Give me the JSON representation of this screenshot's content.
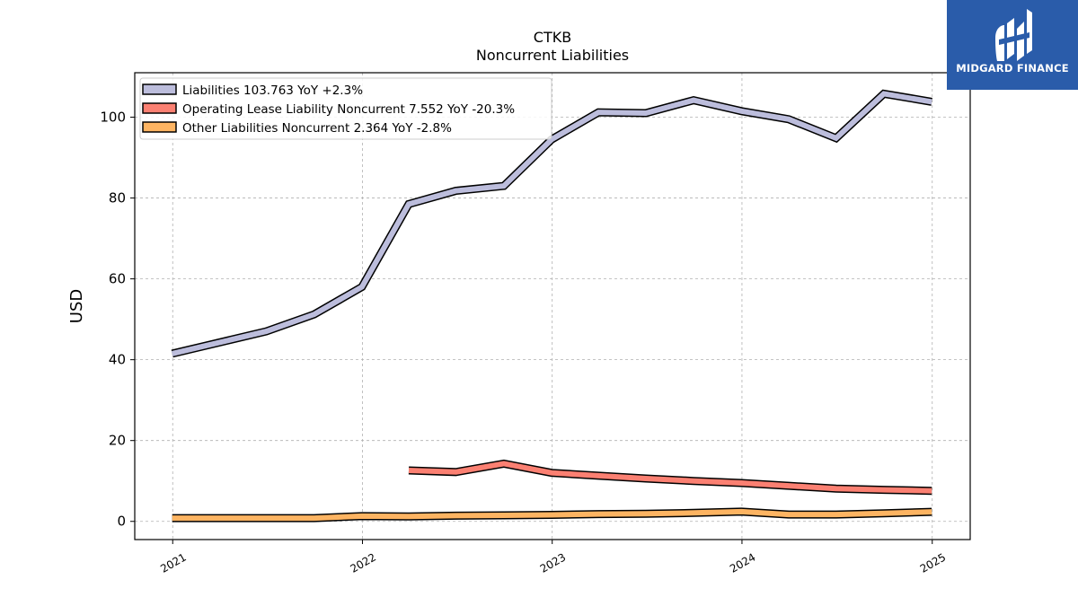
{
  "chart_data": {
    "type": "line",
    "title": "CTKB",
    "subtitle": "Noncurrent  Liabilities",
    "xlabel": "",
    "ylabel": "USD",
    "xlim": [
      "2020-10-20",
      "2025-03-15"
    ],
    "ylim": [
      -4.5,
      111
    ],
    "yticks": [
      0,
      20,
      40,
      60,
      80,
      100
    ],
    "xticks": [
      "2021",
      "2022",
      "2023",
      "2024",
      "2025"
    ],
    "grid": true,
    "legend_position": "upper-left",
    "series": [
      {
        "name": "Liabilities  103.763 YoY +2.3%",
        "color": "#bcbddc",
        "x": [
          "2020-12-31",
          "2021-06-30",
          "2021-09-30",
          "2021-12-31",
          "2022-03-31",
          "2022-06-30",
          "2022-09-30",
          "2022-12-31",
          "2023-03-31",
          "2023-06-30",
          "2023-09-30",
          "2023-12-31",
          "2024-03-31",
          "2024-06-30",
          "2024-09-30",
          "2024-12-31"
        ],
        "y": [
          41.5,
          47.0,
          51.2,
          58.0,
          78.5,
          81.8,
          83.0,
          94.5,
          101.2,
          101.0,
          104.2,
          101.5,
          99.5,
          94.8,
          105.8,
          103.8
        ]
      },
      {
        "name": "Operating Lease Liability Noncurrent  7.552 YoY -20.3%",
        "color": "#fb8072",
        "x": [
          "2022-03-31",
          "2022-06-30",
          "2022-09-30",
          "2022-12-31",
          "2023-03-31",
          "2023-06-30",
          "2023-09-30",
          "2023-12-31",
          "2024-03-31",
          "2024-06-30",
          "2024-09-30",
          "2024-12-31"
        ],
        "y": [
          12.6,
          12.2,
          14.3,
          12.0,
          11.3,
          10.6,
          10.0,
          9.5,
          8.8,
          8.1,
          7.8,
          7.55
        ]
      },
      {
        "name": "Other Liabilities Noncurrent  2.364 YoY -2.8%",
        "color": "#fdb462",
        "x": [
          "2020-12-31",
          "2021-06-30",
          "2021-09-30",
          "2021-12-31",
          "2022-03-31",
          "2022-06-30",
          "2022-09-30",
          "2022-12-31",
          "2023-03-31",
          "2023-06-30",
          "2023-09-30",
          "2023-12-31",
          "2024-03-31",
          "2024-06-30",
          "2024-09-30",
          "2024-12-31"
        ],
        "y": [
          0.8,
          0.8,
          0.8,
          1.3,
          1.2,
          1.4,
          1.5,
          1.6,
          1.8,
          1.9,
          2.1,
          2.4,
          1.7,
          1.7,
          2.0,
          2.36
        ]
      }
    ]
  },
  "logo": {
    "text": "MIDGARD FINANCE"
  }
}
